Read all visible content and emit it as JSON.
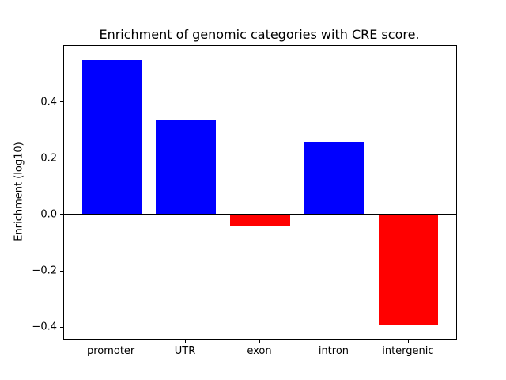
{
  "chart_data": {
    "type": "bar",
    "title": "Enrichment of genomic categories with CRE score.",
    "xlabel": "",
    "ylabel": "Enrichment (log10)",
    "categories": [
      "promoter",
      "UTR",
      "exon",
      "intron",
      "intergenic"
    ],
    "values": [
      0.55,
      0.34,
      -0.04,
      0.26,
      -0.39
    ],
    "bar_colors": [
      "#0000ff",
      "#0000ff",
      "#ff0000",
      "#0000ff",
      "#ff0000"
    ],
    "positive_color": "#0000ff",
    "negative_color": "#ff0000",
    "yticks": [
      -0.4,
      -0.2,
      0.0,
      0.2,
      0.4
    ],
    "ylim": [
      -0.44,
      0.6
    ],
    "xlim": [
      -0.64,
      4.64
    ],
    "bar_width": 0.8,
    "zero_line": true,
    "grid": false,
    "legend": false,
    "background_color": "#ffffff"
  }
}
